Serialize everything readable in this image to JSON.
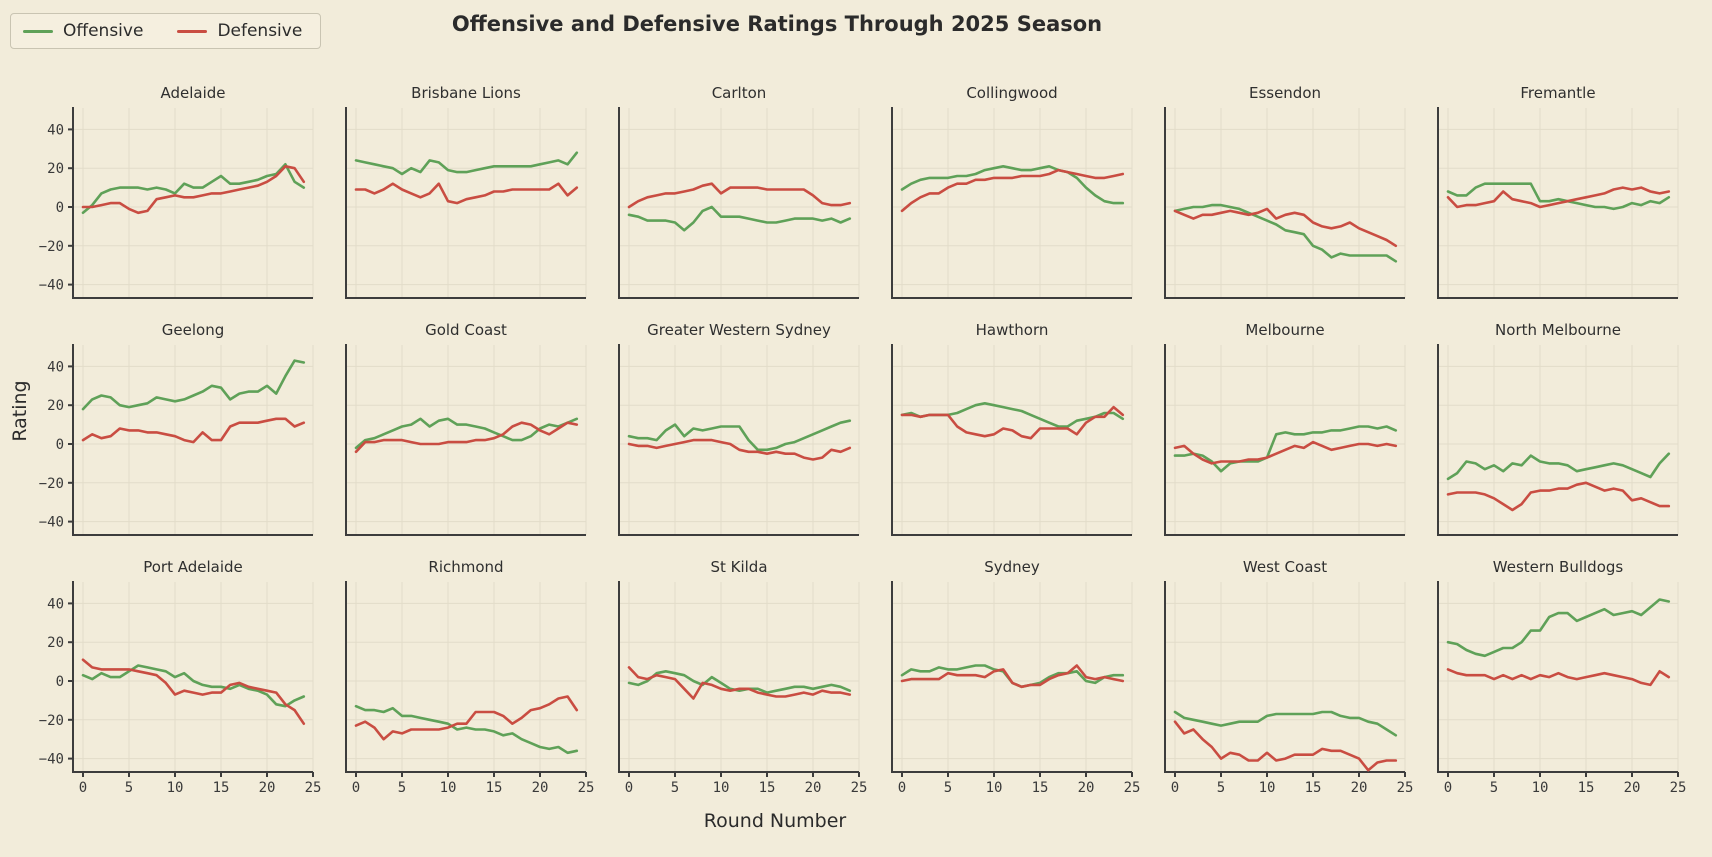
{
  "title": "Offensive and Defensive Ratings Through 2025 Season",
  "xlabel": "Round Number",
  "ylabel": "Rating",
  "legend": [
    {
      "label": "Offensive",
      "color": "#5fa158"
    },
    {
      "label": "Defensive",
      "color": "#c94d42"
    }
  ],
  "colors": {
    "background": "#f2ecda",
    "grid": "#e2dcc9",
    "spine": "#3d3d3d",
    "offensive": "#5fa158",
    "defensive": "#c94d42"
  },
  "chart_data": {
    "type": "line",
    "layout": "small-multiples 3 rows x 6 cols, shared axes",
    "x": [
      0,
      1,
      2,
      3,
      4,
      5,
      6,
      7,
      8,
      9,
      10,
      11,
      12,
      13,
      14,
      15,
      16,
      17,
      18,
      19,
      20,
      21,
      22,
      23,
      24
    ],
    "xticks": [
      0,
      5,
      10,
      15,
      20,
      25
    ],
    "yticks": [
      -40,
      -20,
      0,
      20,
      40
    ],
    "ylim": [
      -51,
      51
    ],
    "xlim": [
      -1,
      25
    ],
    "grid": true,
    "legend_position": "upper-left outside",
    "series_names": [
      "Offensive",
      "Defensive"
    ],
    "panels": [
      {
        "team": "Adelaide",
        "offensive": [
          -3,
          1,
          7,
          9,
          10,
          10,
          10,
          9,
          10,
          9,
          7,
          12,
          10,
          10,
          13,
          16,
          12,
          12,
          13,
          14,
          16,
          17,
          22,
          13,
          10
        ],
        "defensive": [
          0,
          0,
          1,
          2,
          2,
          -1,
          -3,
          -2,
          4,
          5,
          6,
          5,
          5,
          6,
          7,
          7,
          8,
          9,
          10,
          11,
          13,
          16,
          21,
          20,
          13
        ]
      },
      {
        "team": "Brisbane Lions",
        "offensive": [
          24,
          23,
          22,
          21,
          20,
          17,
          20,
          18,
          24,
          23,
          19,
          18,
          18,
          19,
          20,
          21,
          21,
          21,
          21,
          21,
          22,
          23,
          24,
          22,
          28
        ],
        "defensive": [
          9,
          9,
          7,
          9,
          12,
          9,
          7,
          5,
          7,
          12,
          3,
          2,
          4,
          5,
          6,
          8,
          8,
          9,
          9,
          9,
          9,
          9,
          12,
          6,
          10
        ]
      },
      {
        "team": "Carlton",
        "offensive": [
          -4,
          -5,
          -7,
          -7,
          -7,
          -8,
          -12,
          -8,
          -2,
          0,
          -5,
          -5,
          -5,
          -6,
          -7,
          -8,
          -8,
          -7,
          -6,
          -6,
          -6,
          -7,
          -6,
          -8,
          -6
        ],
        "defensive": [
          0,
          3,
          5,
          6,
          7,
          7,
          8,
          9,
          11,
          12,
          7,
          10,
          10,
          10,
          10,
          9,
          9,
          9,
          9,
          9,
          6,
          2,
          1,
          1,
          2
        ]
      },
      {
        "team": "Collingwood",
        "offensive": [
          9,
          12,
          14,
          15,
          15,
          15,
          16,
          16,
          17,
          19,
          20,
          21,
          20,
          19,
          19,
          20,
          21,
          19,
          18,
          15,
          10,
          6,
          3,
          2,
          2
        ],
        "defensive": [
          -2,
          2,
          5,
          7,
          7,
          10,
          12,
          12,
          14,
          14,
          15,
          15,
          15,
          16,
          16,
          16,
          17,
          19,
          18,
          17,
          16,
          15,
          15,
          16,
          17
        ]
      },
      {
        "team": "Essendon",
        "offensive": [
          -2,
          -1,
          0,
          0,
          1,
          1,
          0,
          -1,
          -3,
          -5,
          -7,
          -9,
          -12,
          -13,
          -14,
          -20,
          -22,
          -26,
          -24,
          -25,
          -25,
          -25,
          -25,
          -25,
          -28
        ],
        "defensive": [
          -2,
          -4,
          -6,
          -4,
          -4,
          -3,
          -2,
          -3,
          -4,
          -3,
          -1,
          -6,
          -4,
          -3,
          -4,
          -8,
          -10,
          -11,
          -10,
          -8,
          -11,
          -13,
          -15,
          -17,
          -20
        ]
      },
      {
        "team": "Fremantle",
        "offensive": [
          8,
          6,
          6,
          10,
          12,
          12,
          12,
          12,
          12,
          12,
          3,
          3,
          4,
          3,
          2,
          1,
          0,
          0,
          -1,
          0,
          2,
          1,
          3,
          2,
          5
        ],
        "defensive": [
          5,
          0,
          1,
          1,
          2,
          3,
          8,
          4,
          3,
          2,
          0,
          1,
          2,
          3,
          4,
          5,
          6,
          7,
          9,
          10,
          9,
          10,
          8,
          7,
          8
        ]
      },
      {
        "team": "Geelong",
        "offensive": [
          18,
          23,
          25,
          24,
          20,
          19,
          20,
          21,
          24,
          23,
          22,
          23,
          25,
          27,
          30,
          29,
          23,
          26,
          27,
          27,
          30,
          26,
          35,
          43,
          42
        ],
        "defensive": [
          2,
          5,
          3,
          4,
          8,
          7,
          7,
          6,
          6,
          5,
          4,
          2,
          1,
          6,
          2,
          2,
          9,
          11,
          11,
          11,
          12,
          13,
          13,
          9,
          11
        ]
      },
      {
        "team": "Gold Coast",
        "offensive": [
          -2,
          2,
          3,
          5,
          7,
          9,
          10,
          13,
          9,
          12,
          13,
          10,
          10,
          9,
          8,
          6,
          4,
          2,
          2,
          4,
          8,
          10,
          9,
          11,
          13
        ],
        "defensive": [
          -4,
          1,
          1,
          2,
          2,
          2,
          1,
          0,
          0,
          0,
          1,
          1,
          1,
          2,
          2,
          3,
          5,
          9,
          11,
          10,
          7,
          5,
          8,
          11,
          10
        ]
      },
      {
        "team": "Greater Western Sydney",
        "offensive": [
          4,
          3,
          3,
          2,
          7,
          10,
          4,
          8,
          7,
          8,
          9,
          9,
          9,
          2,
          -3,
          -3,
          -2,
          0,
          1,
          3,
          5,
          7,
          9,
          11,
          12
        ],
        "defensive": [
          0,
          -1,
          -1,
          -2,
          -1,
          0,
          1,
          2,
          2,
          2,
          1,
          0,
          -3,
          -4,
          -4,
          -5,
          -4,
          -5,
          -5,
          -7,
          -8,
          -7,
          -3,
          -4,
          -2
        ]
      },
      {
        "team": "Hawthorn",
        "offensive": [
          15,
          16,
          14,
          15,
          15,
          15,
          16,
          18,
          20,
          21,
          20,
          19,
          18,
          17,
          15,
          13,
          11,
          9,
          9,
          12,
          13,
          14,
          16,
          16,
          13
        ],
        "defensive": [
          15,
          15,
          14,
          15,
          15,
          15,
          9,
          6,
          5,
          4,
          5,
          8,
          7,
          4,
          3,
          8,
          8,
          8,
          8,
          5,
          11,
          14,
          14,
          19,
          15
        ]
      },
      {
        "team": "Melbourne",
        "offensive": [
          -6,
          -6,
          -5,
          -6,
          -9,
          -14,
          -10,
          -9,
          -9,
          -9,
          -7,
          5,
          6,
          5,
          5,
          6,
          6,
          7,
          7,
          8,
          9,
          9,
          8,
          9,
          7
        ],
        "defensive": [
          -2,
          -1,
          -5,
          -8,
          -10,
          -9,
          -9,
          -9,
          -8,
          -8,
          -7,
          -5,
          -3,
          -1,
          -2,
          1,
          -1,
          -3,
          -2,
          -1,
          0,
          0,
          -1,
          0,
          -1
        ]
      },
      {
        "team": "North Melbourne",
        "offensive": [
          -18,
          -15,
          -9,
          -10,
          -13,
          -11,
          -14,
          -10,
          -11,
          -6,
          -9,
          -10,
          -10,
          -11,
          -14,
          -13,
          -12,
          -11,
          -10,
          -11,
          -13,
          -15,
          -17,
          -10,
          -5
        ],
        "defensive": [
          -26,
          -25,
          -25,
          -25,
          -26,
          -28,
          -31,
          -34,
          -31,
          -25,
          -24,
          -24,
          -23,
          -23,
          -21,
          -20,
          -22,
          -24,
          -23,
          -24,
          -29,
          -28,
          -30,
          -32,
          -32
        ]
      },
      {
        "team": "Port Adelaide",
        "offensive": [
          3,
          1,
          4,
          2,
          2,
          5,
          8,
          7,
          6,
          5,
          2,
          4,
          0,
          -2,
          -3,
          -3,
          -4,
          -2,
          -4,
          -5,
          -7,
          -12,
          -13,
          -10,
          -8
        ],
        "defensive": [
          11,
          7,
          6,
          6,
          6,
          6,
          5,
          4,
          3,
          -1,
          -7,
          -5,
          -6,
          -7,
          -6,
          -6,
          -2,
          -1,
          -3,
          -4,
          -5,
          -6,
          -12,
          -15,
          -22
        ]
      },
      {
        "team": "Richmond",
        "offensive": [
          -13,
          -15,
          -15,
          -16,
          -14,
          -18,
          -18,
          -19,
          -20,
          -21,
          -22,
          -25,
          -24,
          -25,
          -25,
          -26,
          -28,
          -27,
          -30,
          -32,
          -34,
          -35,
          -34,
          -37,
          -36
        ],
        "defensive": [
          -23,
          -21,
          -24,
          -30,
          -26,
          -27,
          -25,
          -25,
          -25,
          -25,
          -24,
          -22,
          -22,
          -16,
          -16,
          -16,
          -18,
          -22,
          -19,
          -15,
          -14,
          -12,
          -9,
          -8,
          -15
        ]
      },
      {
        "team": "St Kilda",
        "offensive": [
          -1,
          -2,
          0,
          4,
          5,
          4,
          3,
          0,
          -2,
          2,
          -1,
          -4,
          -5,
          -4,
          -4,
          -6,
          -5,
          -4,
          -3,
          -3,
          -4,
          -3,
          -2,
          -3,
          -5
        ],
        "defensive": [
          7,
          2,
          1,
          3,
          2,
          1,
          -4,
          -9,
          -1,
          -2,
          -4,
          -5,
          -4,
          -4,
          -6,
          -7,
          -8,
          -8,
          -7,
          -6,
          -7,
          -5,
          -6,
          -6,
          -7
        ]
      },
      {
        "team": "Sydney",
        "offensive": [
          3,
          6,
          5,
          5,
          7,
          6,
          6,
          7,
          8,
          8,
          6,
          5,
          -1,
          -3,
          -2,
          -1,
          2,
          4,
          4,
          5,
          0,
          -1,
          2,
          3,
          3
        ],
        "defensive": [
          0,
          1,
          1,
          1,
          1,
          4,
          3,
          3,
          3,
          2,
          5,
          6,
          -1,
          -3,
          -2,
          -2,
          1,
          3,
          4,
          8,
          2,
          1,
          2,
          1,
          0
        ]
      },
      {
        "team": "West Coast",
        "offensive": [
          -16,
          -19,
          -20,
          -21,
          -22,
          -23,
          -22,
          -21,
          -21,
          -21,
          -18,
          -17,
          -17,
          -17,
          -17,
          -17,
          -16,
          -16,
          -18,
          -19,
          -19,
          -21,
          -22,
          -25,
          -28
        ],
        "defensive": [
          -21,
          -27,
          -25,
          -30,
          -34,
          -40,
          -37,
          -38,
          -41,
          -41,
          -37,
          -41,
          -40,
          -38,
          -38,
          -38,
          -35,
          -36,
          -36,
          -38,
          -40,
          -46,
          -42,
          -41,
          -41
        ]
      },
      {
        "team": "Western Bulldogs",
        "offensive": [
          20,
          19,
          16,
          14,
          13,
          15,
          17,
          17,
          20,
          26,
          26,
          33,
          35,
          35,
          31,
          33,
          35,
          37,
          34,
          35,
          36,
          34,
          38,
          42,
          41
        ],
        "defensive": [
          6,
          4,
          3,
          3,
          3,
          1,
          3,
          1,
          3,
          1,
          3,
          2,
          4,
          2,
          1,
          2,
          3,
          4,
          3,
          2,
          1,
          -1,
          -2,
          5,
          2
        ]
      }
    ]
  }
}
